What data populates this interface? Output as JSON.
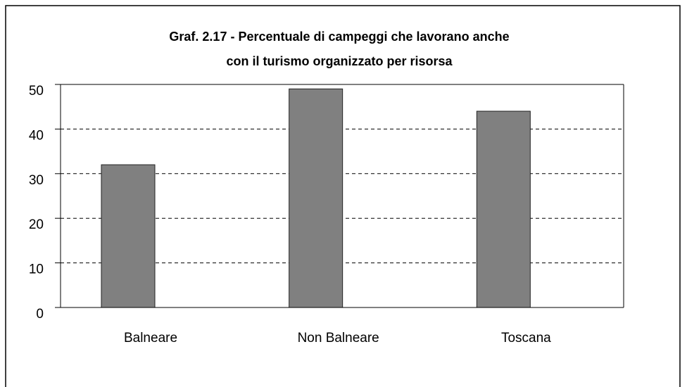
{
  "chart_data": {
    "type": "bar",
    "title": [
      "Graf. 2.17 - Percentuale di campeggi che lavorano anche",
      "con il turismo organizzato per risorsa"
    ],
    "categories": [
      "Balneare",
      "Non Balneare",
      "Toscana"
    ],
    "values": [
      32,
      49,
      44
    ],
    "color": "#808080",
    "ylim": [
      0,
      50
    ],
    "yticks": [
      0,
      10,
      20,
      30,
      40,
      50
    ],
    "grid": true
  }
}
